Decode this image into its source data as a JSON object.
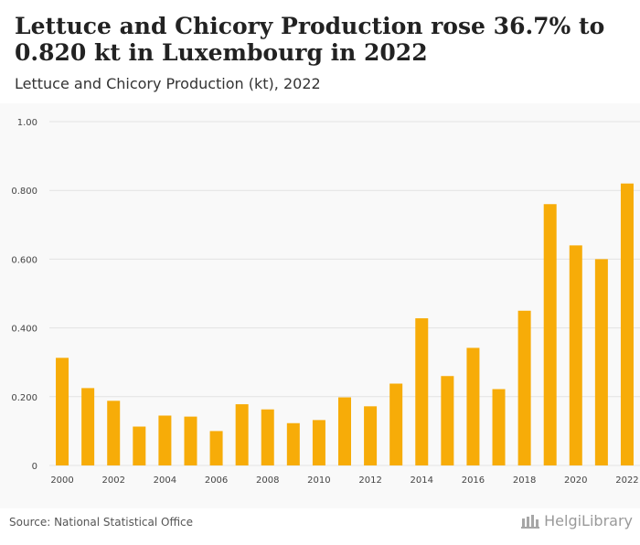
{
  "header": {
    "title": "Lettuce and Chicory Production rose 36.7% to 0.820 kt in Luxembourg in 2022",
    "subtitle": "Lettuce and Chicory Production (kt), 2022"
  },
  "footer": {
    "source": "Source: National Statistical Office",
    "logo_text": "HelgiLibrary"
  },
  "colors": {
    "bar": "#f7ac08",
    "grid": "#e3e3e3",
    "axis_text": "#444444"
  },
  "chart_data": {
    "type": "bar",
    "title": "Lettuce and Chicory Production (kt), 2022",
    "xlabel": "",
    "ylabel": "",
    "ylim": [
      0,
      1.0
    ],
    "grid": true,
    "y_ticks": [
      0,
      0.2,
      0.4,
      0.6,
      0.8,
      1.0
    ],
    "y_tick_labels": [
      "0",
      "0.200",
      "0.400",
      "0.600",
      "0.800",
      "1.00"
    ],
    "categories": [
      "2000",
      "2001",
      "2002",
      "2003",
      "2004",
      "2005",
      "2006",
      "2007",
      "2008",
      "2009",
      "2010",
      "2011",
      "2012",
      "2013",
      "2014",
      "2015",
      "2016",
      "2017",
      "2018",
      "2019",
      "2020",
      "2021",
      "2022"
    ],
    "x_tick_labels": [
      "2000",
      "",
      "2002",
      "",
      "2004",
      "",
      "2006",
      "",
      "2008",
      "",
      "2010",
      "",
      "2012",
      "",
      "2014",
      "",
      "2016",
      "",
      "2018",
      "",
      "2020",
      "",
      "2022"
    ],
    "values": [
      0.313,
      0.225,
      0.188,
      0.113,
      0.145,
      0.142,
      0.1,
      0.178,
      0.163,
      0.123,
      0.132,
      0.198,
      0.172,
      0.238,
      0.428,
      0.26,
      0.342,
      0.222,
      0.45,
      0.76,
      0.64,
      0.6,
      0.82
    ]
  }
}
